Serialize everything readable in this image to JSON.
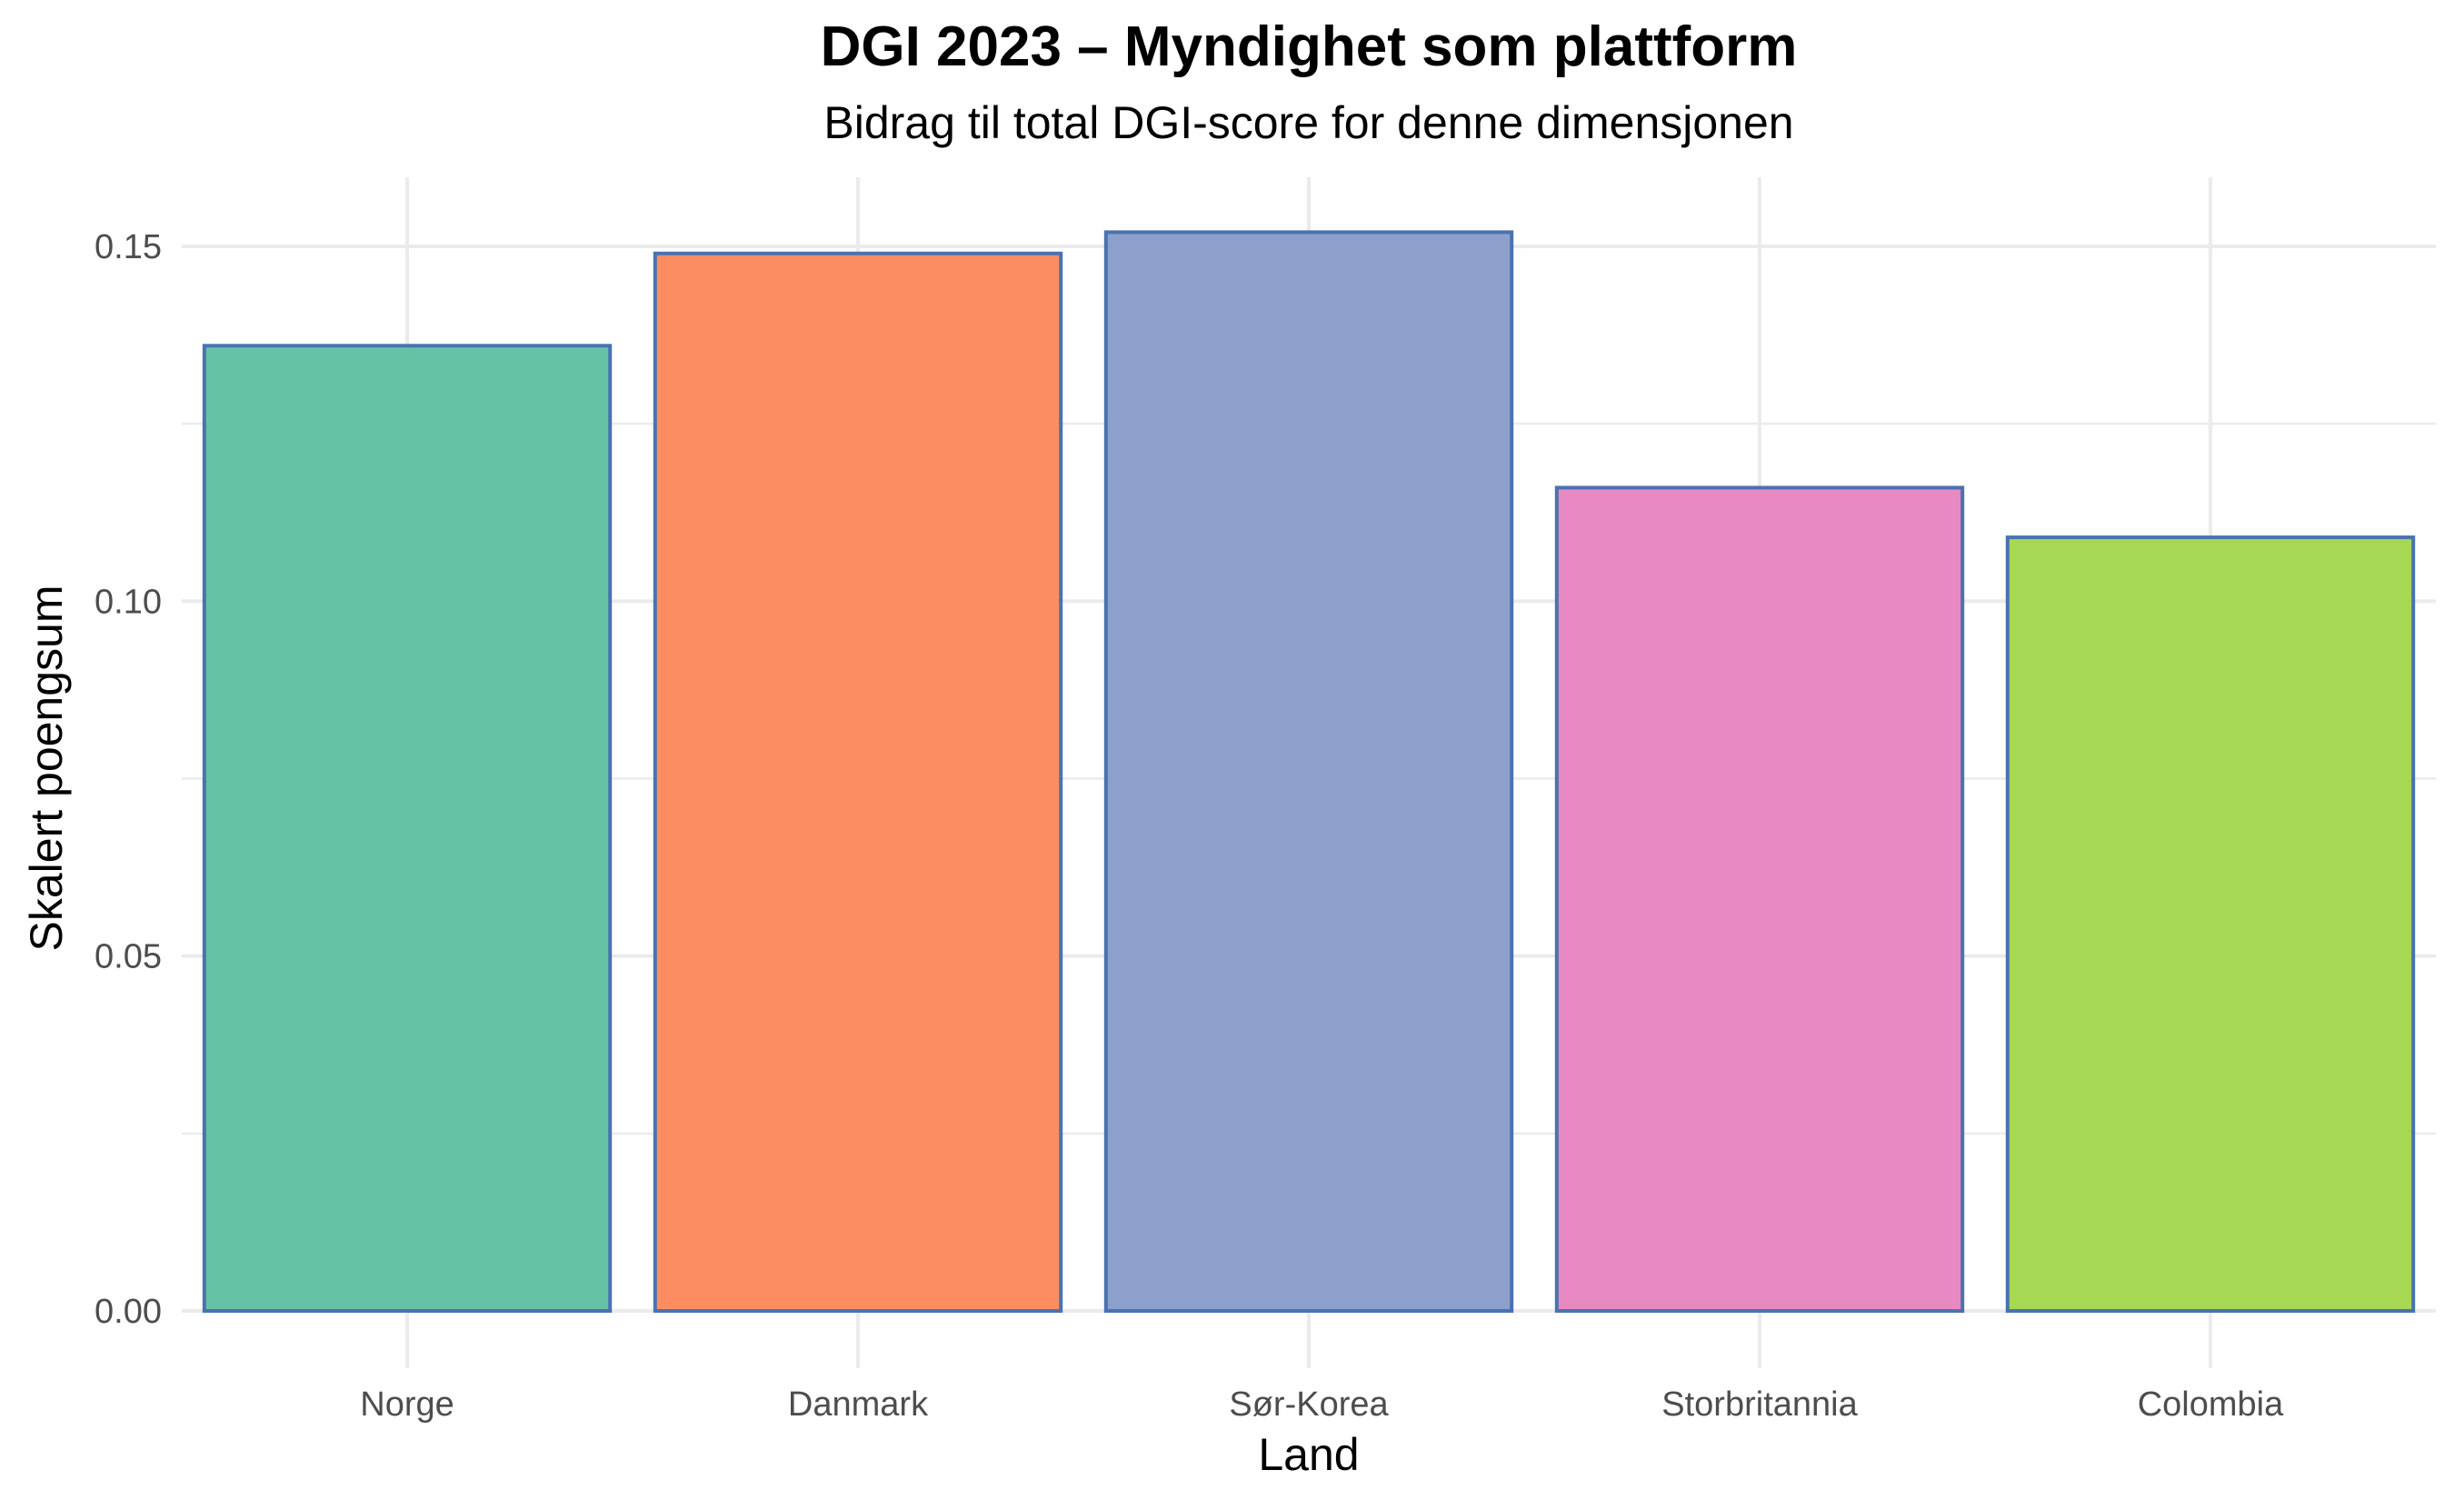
{
  "chart_data": {
    "type": "bar",
    "title": "DGI 2023 – Myndighet som plattform",
    "subtitle": "Bidrag til total DGI-score for denne dimensjonen",
    "xlabel": "Land",
    "ylabel": "Skalert poengsum",
    "categories": [
      "Norge",
      "Danmark",
      "Sør-Korea",
      "Storbritannia",
      "Colombia"
    ],
    "values": [
      0.136,
      0.149,
      0.152,
      0.116,
      0.109
    ],
    "colors": [
      "#66c2a5",
      "#fc8d62",
      "#8da0cb",
      "#e78ac3",
      "#a6d854"
    ],
    "bar_border_color": "#4a72b0",
    "ylim": [
      0,
      0.16
    ],
    "yticks": [
      0.0,
      0.05,
      0.1,
      0.15
    ],
    "ytick_labels": [
      "0.00",
      "0.05",
      "0.10",
      "0.15"
    ],
    "grid": true,
    "legend": "none"
  }
}
